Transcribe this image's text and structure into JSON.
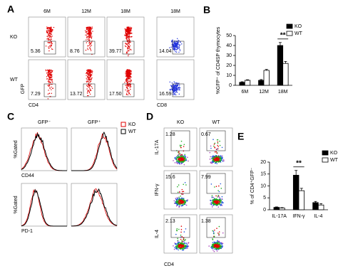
{
  "panels": {
    "A": {
      "label": "A",
      "columns": [
        "6M",
        "12M",
        "18M",
        "18M"
      ],
      "rows": [
        "KO",
        "WT"
      ],
      "values": [
        [
          "5.36",
          "8.76",
          "39.77",
          "14.04"
        ],
        [
          "7.29",
          "13.72",
          "17.50",
          "16.59"
        ]
      ],
      "y_axis": "GFP",
      "x_axes": [
        "CD4",
        "CD8"
      ]
    },
    "C": {
      "label": "C",
      "columns": [
        "GFP⁻",
        "GFP⁺"
      ],
      "y_axis": "%Gated",
      "x_axes": [
        "CD44",
        "PD-1"
      ],
      "legend": [
        "KO",
        "WT"
      ]
    },
    "D": {
      "label": "D",
      "columns": [
        "KO",
        "WT"
      ],
      "y_axes": [
        "IL-17A",
        "IFN-γ",
        "IL-4"
      ],
      "values": [
        [
          "1.28",
          "0.67"
        ],
        [
          "15.6",
          "7.99"
        ],
        [
          "2.13",
          "1.38"
        ]
      ],
      "x_axis": "CD4"
    }
  },
  "chart_data": [
    {
      "type": "bar",
      "label": "B",
      "y_label": "%GFP⁺ of CD4SP thymocytes",
      "categories": [
        "6M",
        "12M",
        "18M"
      ],
      "series": [
        {
          "name": "KO",
          "color": "#000000",
          "values": [
            3,
            5,
            40
          ],
          "errors": [
            0.6,
            0.8,
            3
          ]
        },
        {
          "name": "WT",
          "color": "#ffffff",
          "values": [
            5,
            15,
            22
          ],
          "errors": [
            0.6,
            1,
            2
          ]
        }
      ],
      "ylim": [
        0,
        50
      ],
      "yticks": [
        0,
        10,
        20,
        30,
        40,
        50
      ],
      "legend": "upper right",
      "annotation": {
        "text": "**",
        "at": "18M"
      }
    },
    {
      "type": "bar",
      "label": "E",
      "y_label": "% of CD4⁺GFP⁻",
      "categories": [
        "IL-17A",
        "IFN-γ",
        "IL-4"
      ],
      "series": [
        {
          "name": "KO",
          "color": "#000000",
          "values": [
            1,
            14.5,
            3
          ],
          "errors": [
            0.2,
            2,
            0.5
          ]
        },
        {
          "name": "WT",
          "color": "#ffffff",
          "values": [
            0.7,
            8,
            2
          ],
          "errors": [
            0.2,
            1,
            0.6
          ]
        }
      ],
      "ylim": [
        0,
        20
      ],
      "yticks": [
        0,
        5,
        10,
        15,
        20
      ],
      "legend": "upper right",
      "annotation": {
        "text": "**",
        "at": "IFN-γ"
      }
    }
  ]
}
